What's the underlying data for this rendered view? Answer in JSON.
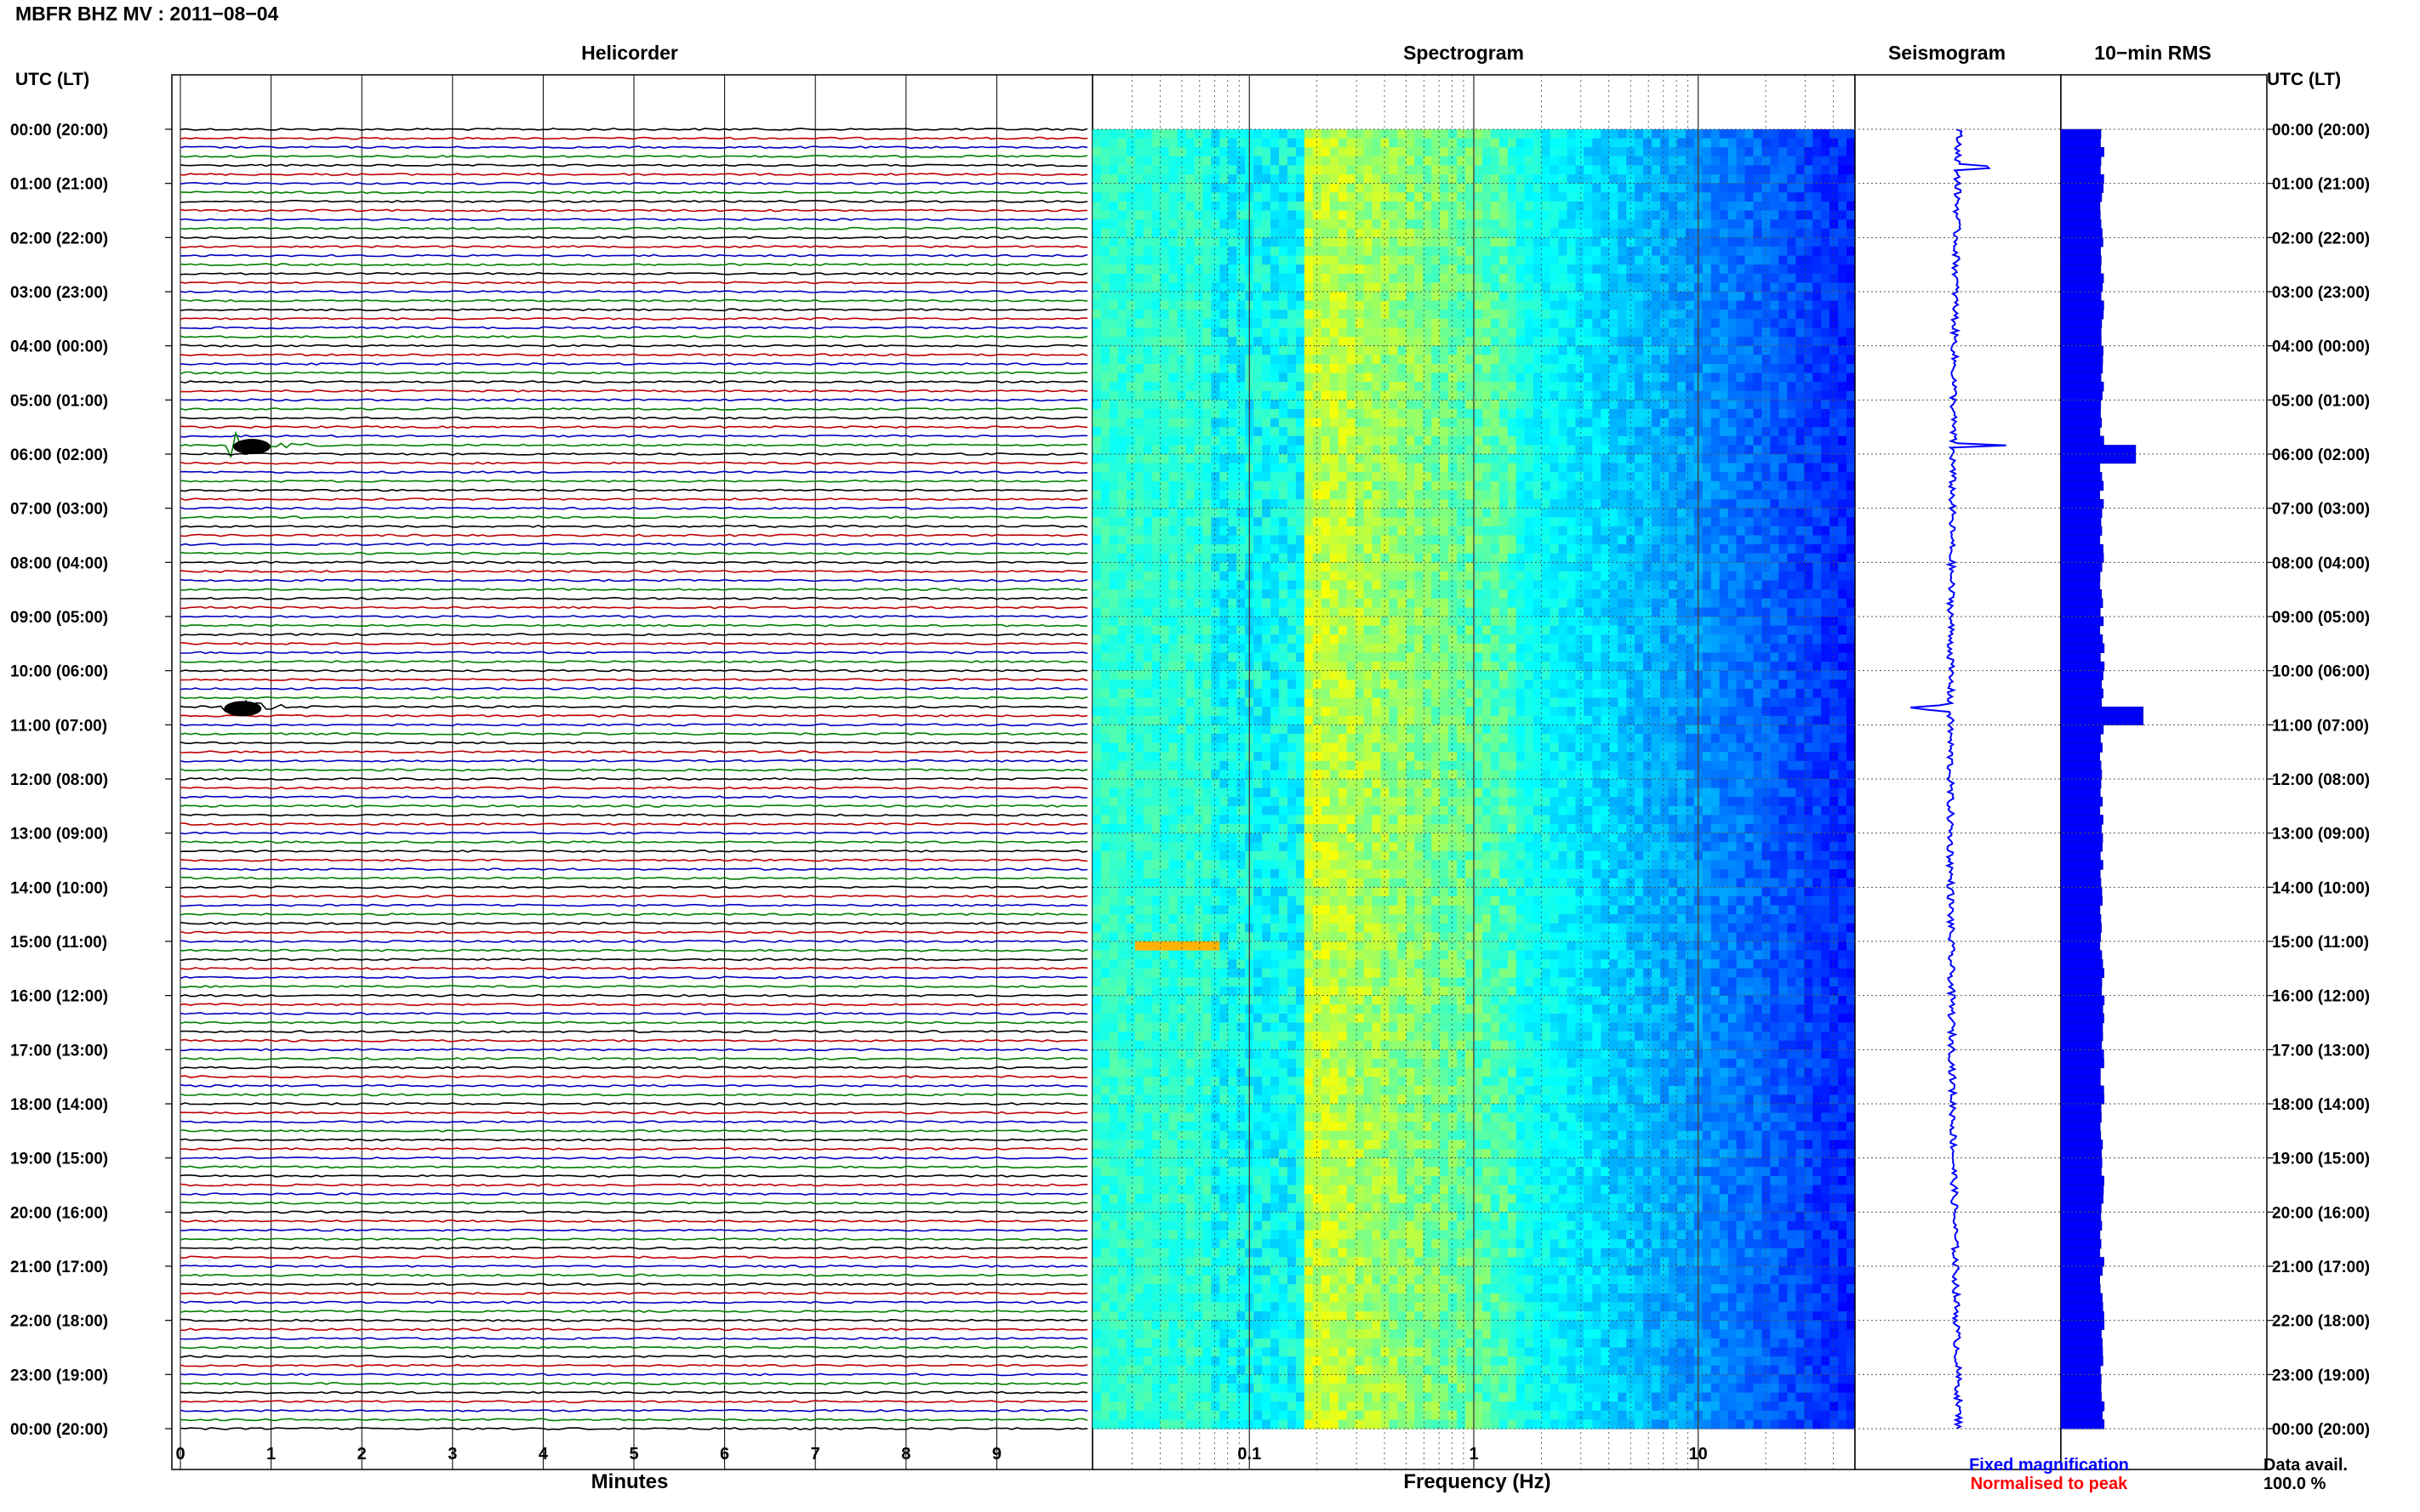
{
  "header": {
    "title": "MBFR BHZ MV : 2011−08−04"
  },
  "panels": {
    "helicorder": "Helicorder",
    "spectrogram": "Spectrogram",
    "seismogram": "Seismogram",
    "rms": "10−min RMS"
  },
  "axis_labels": {
    "left_time": "UTC (LT)",
    "right_time": "UTC (LT)",
    "minutes": "Minutes",
    "frequency": "Frequency (Hz)"
  },
  "legend": {
    "fixed": "Fixed magnification",
    "normalised": "Normalised to peak",
    "fixed_color": "#0000ff",
    "normalised_color": "#ff0000"
  },
  "data_avail": {
    "label": "Data avail.",
    "value": "100.0 %"
  },
  "colors": {
    "trace_cycle": [
      "#000000",
      "#c00000",
      "#0000c0",
      "#008000"
    ],
    "spectrogram_low": "#00008b",
    "spectrogram_high": "#f0f000",
    "seismogram": "#0000ff",
    "rms_bar": "#0000ff"
  },
  "chart_data": [
    {
      "type": "line",
      "title": "Helicorder",
      "xlabel": "Minutes",
      "ylabel": "UTC (LT)",
      "xlim": [
        0,
        10
      ],
      "x_ticks": [
        "0",
        "1",
        "2",
        "3",
        "4",
        "5",
        "6",
        "7",
        "8",
        "9"
      ],
      "traces_per_hour": 6,
      "trace_minutes": 10,
      "y_tick_labels": [
        "00:00 (20:00)",
        "01:00 (21:00)",
        "02:00 (22:00)",
        "03:00 (23:00)",
        "04:00 (00:00)",
        "05:00 (01:00)",
        "06:00 (02:00)",
        "07:00 (03:00)",
        "08:00 (04:00)",
        "09:00 (05:00)",
        "10:00 (06:00)",
        "11:00 (07:00)",
        "12:00 (08:00)",
        "13:00 (09:00)",
        "14:00 (10:00)",
        "15:00 (11:00)",
        "16:00 (12:00)",
        "17:00 (13:00)",
        "18:00 (14:00)",
        "19:00 (15:00)",
        "20:00 (16:00)",
        "21:00 (17:00)",
        "22:00 (18:00)",
        "23:00 (19:00)",
        "00:00 (20:00)"
      ],
      "events": [
        {
          "hour": 5.83,
          "minute": 0.6,
          "amplitude": 3.0
        },
        {
          "hour": 10.67,
          "minute": 0.5,
          "amplitude": 3.2
        }
      ],
      "grid": true
    },
    {
      "type": "heatmap",
      "title": "Spectrogram",
      "xlabel": "Frequency (Hz)",
      "x_scale": "log",
      "xlim": [
        0.02,
        50
      ],
      "x_ticks": [
        "0.1",
        "1",
        "10"
      ],
      "colormap": "jet",
      "grid": true
    },
    {
      "type": "line",
      "title": "Seismogram",
      "note_events": [
        {
          "hour": 0.7,
          "amplitude": 1.0
        },
        {
          "hour": 5.83,
          "amplitude": 2.0
        },
        {
          "hour": 10.67,
          "amplitude": 2.5
        }
      ]
    },
    {
      "type": "bar",
      "title": "10−min RMS",
      "orientation": "horizontal",
      "bins_per_hour": 6,
      "baseline_level": 0.55,
      "peaks": [
        {
          "hour": 5.9,
          "level": 1.0
        },
        {
          "hour": 10.75,
          "level": 1.1
        }
      ]
    }
  ]
}
